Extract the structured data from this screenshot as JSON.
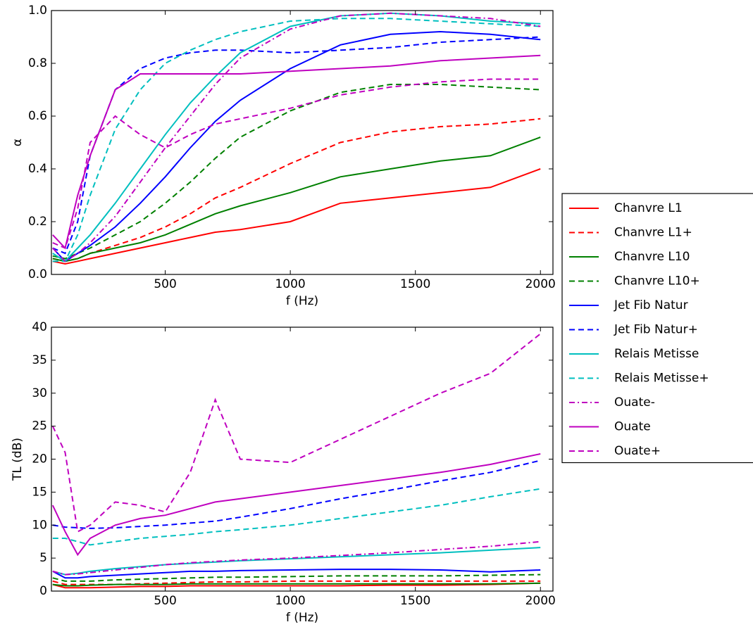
{
  "chart_data": [
    {
      "type": "line",
      "xlabel": "f (Hz)",
      "ylabel": "α",
      "x": [
        50,
        100,
        150,
        200,
        300,
        400,
        500,
        600,
        700,
        800,
        1000,
        1200,
        1400,
        1600,
        1800,
        2000
      ],
      "xlim": [
        45,
        2050
      ],
      "xticks": [
        500,
        1000,
        1500,
        2000
      ],
      "ylim": [
        0,
        1
      ],
      "yticks": [
        {
          "value": 0,
          "label": "0.0"
        },
        {
          "value": 0.2,
          "label": "0.2"
        },
        {
          "value": 0.4,
          "label": "0.4"
        },
        {
          "value": 0.6,
          "label": "0.6"
        },
        {
          "value": 0.8,
          "label": "0.8"
        },
        {
          "value": 1,
          "label": "1.0"
        }
      ],
      "legend": "right",
      "series": [
        {
          "name": "Chanvre L1",
          "color": "#ff0000",
          "dash": "solid",
          "values": [
            0.05,
            0.04,
            0.05,
            0.06,
            0.08,
            0.1,
            0.12,
            0.14,
            0.16,
            0.17,
            0.2,
            0.27,
            0.29,
            0.31,
            0.33,
            0.4
          ]
        },
        {
          "name": "Chanvre L1+",
          "color": "#ff0000",
          "dash": "dashed",
          "values": [
            0.06,
            0.05,
            0.06,
            0.08,
            0.11,
            0.14,
            0.18,
            0.23,
            0.29,
            0.33,
            0.42,
            0.5,
            0.54,
            0.56,
            0.57,
            0.59
          ]
        },
        {
          "name": "Chanvre L10",
          "color": "#008000",
          "dash": "solid",
          "values": [
            0.06,
            0.05,
            0.06,
            0.08,
            0.1,
            0.12,
            0.15,
            0.19,
            0.23,
            0.26,
            0.31,
            0.37,
            0.4,
            0.43,
            0.45,
            0.52
          ]
        },
        {
          "name": "Chanvre L10+",
          "color": "#008000",
          "dash": "dashed",
          "values": [
            0.07,
            0.06,
            0.08,
            0.1,
            0.15,
            0.2,
            0.27,
            0.35,
            0.44,
            0.52,
            0.62,
            0.69,
            0.72,
            0.72,
            0.71,
            0.7
          ]
        },
        {
          "name": "Jet Fib Natur",
          "color": "#0000ff",
          "dash": "solid",
          "values": [
            0.1,
            0.05,
            0.08,
            0.11,
            0.18,
            0.27,
            0.37,
            0.48,
            0.58,
            0.66,
            0.78,
            0.87,
            0.91,
            0.92,
            0.91,
            0.89
          ]
        },
        {
          "name": "Jet Fib Natur+",
          "color": "#0000ff",
          "dash": "dashed",
          "values": [
            0.1,
            0.08,
            0.2,
            0.45,
            0.7,
            0.78,
            0.82,
            0.84,
            0.85,
            0.85,
            0.84,
            0.85,
            0.86,
            0.88,
            0.89,
            0.9
          ]
        },
        {
          "name": "Relais Metisse",
          "color": "#00bfbf",
          "dash": "solid",
          "values": [
            0.08,
            0.05,
            0.1,
            0.15,
            0.27,
            0.4,
            0.53,
            0.65,
            0.75,
            0.84,
            0.94,
            0.98,
            0.99,
            0.98,
            0.96,
            0.95
          ]
        },
        {
          "name": "Relais Metisse+",
          "color": "#00bfbf",
          "dash": "dashed",
          "values": [
            0.05,
            0.05,
            0.15,
            0.3,
            0.55,
            0.7,
            0.8,
            0.85,
            0.89,
            0.92,
            0.96,
            0.97,
            0.97,
            0.96,
            0.95,
            0.94
          ]
        },
        {
          "name": "Ouate-",
          "color": "#bf00bf",
          "dash": "dashdot",
          "values": [
            0.1,
            0.05,
            0.08,
            0.12,
            0.22,
            0.35,
            0.48,
            0.6,
            0.72,
            0.82,
            0.93,
            0.98,
            0.99,
            0.98,
            0.97,
            0.94
          ]
        },
        {
          "name": "Ouate",
          "color": "#bf00bf",
          "dash": "solid",
          "values": [
            0.15,
            0.1,
            0.3,
            0.45,
            0.7,
            0.76,
            0.76,
            0.76,
            0.76,
            0.76,
            0.77,
            0.78,
            0.79,
            0.81,
            0.82,
            0.83
          ]
        },
        {
          "name": "Ouate+",
          "color": "#bf00bf",
          "dash": "dashed",
          "values": [
            0.12,
            0.1,
            0.25,
            0.5,
            0.6,
            0.53,
            0.48,
            0.53,
            0.57,
            0.59,
            0.63,
            0.68,
            0.71,
            0.73,
            0.74,
            0.74
          ]
        }
      ]
    },
    {
      "type": "line",
      "xlabel": "f (Hz)",
      "ylabel": "TL (dB)",
      "x": [
        50,
        100,
        150,
        200,
        300,
        400,
        500,
        600,
        700,
        800,
        1000,
        1200,
        1400,
        1600,
        1800,
        2000
      ],
      "xlim": [
        45,
        2050
      ],
      "xticks": [
        500,
        1000,
        1500,
        2000
      ],
      "ylim": [
        0,
        40
      ],
      "yticks": [
        0,
        5,
        10,
        15,
        20,
        25,
        30,
        35,
        40
      ],
      "series": [
        {
          "color": "#ff0000",
          "dash": "solid",
          "values": [
            1,
            0.5,
            0.5,
            0.5,
            0.6,
            0.7,
            0.7,
            0.8,
            0.8,
            0.8,
            0.8,
            0.8,
            0.9,
            0.9,
            1.0,
            1.2
          ]
        },
        {
          "color": "#ff0000",
          "dash": "dashed",
          "values": [
            1.5,
            1,
            1,
            1,
            1,
            1.1,
            1.2,
            1.3,
            1.4,
            1.4,
            1.5,
            1.5,
            1.5,
            1.5,
            1.5,
            1.5
          ]
        },
        {
          "color": "#008000",
          "dash": "solid",
          "values": [
            1,
            0.8,
            0.8,
            0.9,
            1,
            1,
            1,
            1.1,
            1.1,
            1.1,
            1.1,
            1.1,
            1.1,
            1.1,
            1.1,
            1.2
          ]
        },
        {
          "color": "#008000",
          "dash": "dashed",
          "values": [
            2,
            1.5,
            1.5,
            1.5,
            1.7,
            1.8,
            1.9,
            2,
            2.1,
            2.1,
            2.2,
            2.3,
            2.3,
            2.3,
            2.4,
            2.5
          ]
        },
        {
          "color": "#0000ff",
          "dash": "solid",
          "values": [
            3,
            2,
            2,
            2.2,
            2.4,
            2.6,
            2.8,
            3,
            3,
            3.1,
            3.2,
            3.3,
            3.3,
            3.2,
            2.9,
            3.2
          ]
        },
        {
          "color": "#0000ff",
          "dash": "dashed",
          "values": [
            10,
            9.7,
            9.6,
            9.5,
            9.6,
            9.8,
            10,
            10.3,
            10.6,
            11.2,
            12.5,
            14,
            15.3,
            16.7,
            18,
            19.8
          ]
        },
        {
          "color": "#00bfbf",
          "dash": "solid",
          "values": [
            3,
            2.5,
            2.7,
            3,
            3.4,
            3.7,
            4,
            4.2,
            4.4,
            4.6,
            4.9,
            5.2,
            5.5,
            5.8,
            6.2,
            6.6
          ]
        },
        {
          "color": "#00bfbf",
          "dash": "dashed",
          "values": [
            8,
            8,
            7.5,
            7,
            7.5,
            8,
            8.3,
            8.6,
            9,
            9.3,
            10,
            11,
            12,
            13,
            14.3,
            15.5
          ]
        },
        {
          "color": "#bf00bf",
          "dash": "dashdot",
          "values": [
            3,
            2.5,
            2.6,
            2.8,
            3.2,
            3.6,
            4,
            4.3,
            4.5,
            4.7,
            5,
            5.4,
            5.8,
            6.3,
            6.8,
            7.5
          ]
        },
        {
          "color": "#bf00bf",
          "dash": "solid",
          "values": [
            13,
            9,
            5.5,
            8,
            10,
            11,
            11.5,
            12.5,
            13.5,
            14,
            15,
            16,
            17,
            18,
            19.2,
            20.8
          ]
        },
        {
          "color": "#bf00bf",
          "dash": "dashed",
          "values": [
            25,
            21,
            9,
            10,
            13.5,
            13,
            12,
            18,
            29,
            20,
            19.5,
            23,
            26.5,
            30,
            33,
            39
          ]
        }
      ]
    }
  ]
}
